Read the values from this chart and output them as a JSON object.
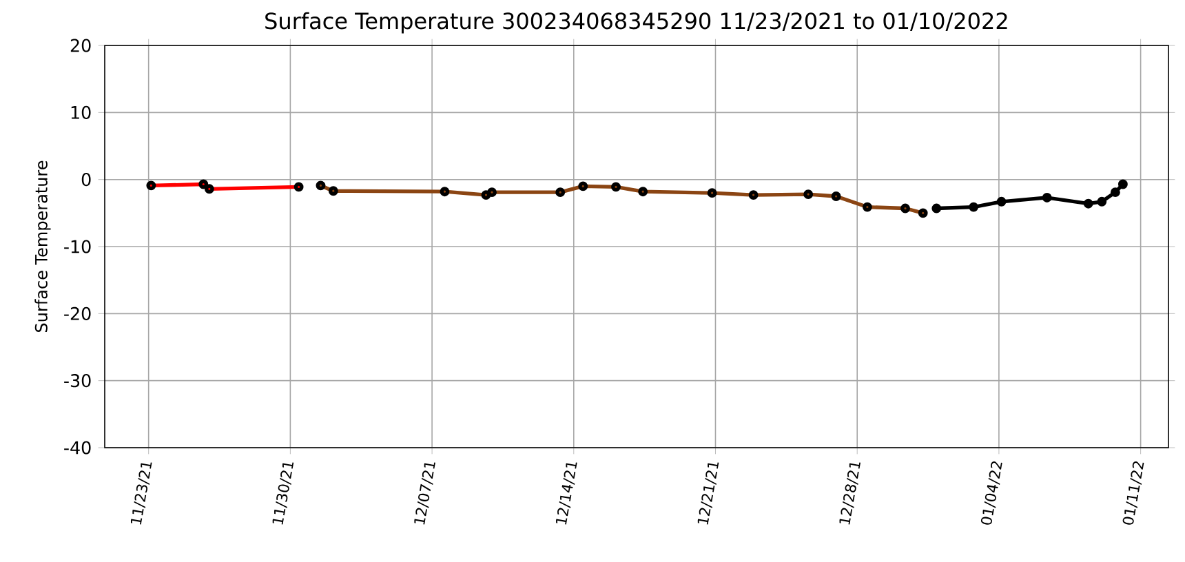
{
  "chart_data": {
    "type": "line",
    "title": "Surface Temperature 300234068345290  11/23/2021 to 01/10/2022",
    "ylabel": "Surface Temperature",
    "marker": "circle",
    "grid": true,
    "xlim": [
      "2021-11-20T20:00",
      "2022-01-12T09:00"
    ],
    "xticks": [
      {
        "value": "2021-11-23",
        "label": "11/23/21"
      },
      {
        "value": "2021-11-30",
        "label": "11/30/21"
      },
      {
        "value": "2021-12-07",
        "label": "12/07/21"
      },
      {
        "value": "2021-12-14",
        "label": "12/14/21"
      },
      {
        "value": "2021-12-21",
        "label": "12/21/21"
      },
      {
        "value": "2021-12-28",
        "label": "12/28/21"
      },
      {
        "value": "2022-01-04",
        "label": "01/04/22"
      },
      {
        "value": "2022-01-11",
        "label": "01/11/22"
      }
    ],
    "ylim": [
      -40,
      20
    ],
    "yticks": [
      -40,
      -30,
      -20,
      -10,
      0,
      10,
      20
    ],
    "series": [
      {
        "color": "#ff0000",
        "x": [
          "2021-11-23T03:00",
          "2021-11-25T17:00",
          "2021-11-26T00:00",
          "2021-11-30T10:00"
        ],
        "values": [
          -0.9,
          -0.7,
          -1.4,
          -1.1
        ]
      },
      {
        "color": "#8b4513",
        "x": [
          "2021-12-01T12:00",
          "2021-12-02T03:00",
          "2021-12-07T15:00",
          "2021-12-09T16:00",
          "2021-12-09T23:00",
          "2021-12-13T08:00",
          "2021-12-14T11:00",
          "2021-12-16T02:00",
          "2021-12-17T10:00",
          "2021-12-20T20:00",
          "2021-12-22T21:00",
          "2021-12-25T14:00",
          "2021-12-26T23:00",
          "2021-12-28T12:00",
          "2021-12-30T09:00",
          "2021-12-31T06:00"
        ],
        "values": [
          -0.9,
          -1.7,
          -1.8,
          -2.3,
          -1.9,
          -1.9,
          -1.0,
          -1.1,
          -1.8,
          -2.0,
          -2.3,
          -2.2,
          -2.5,
          -4.1,
          -4.3,
          -5.0
        ]
      },
      {
        "color": "#000000",
        "x": [
          "2021-12-31T22:00",
          "2022-01-02T18:00",
          "2022-01-04T03:00",
          "2022-01-06T09:00",
          "2022-01-08T10:00",
          "2022-01-09T02:00",
          "2022-01-09T18:00",
          "2022-01-10T03:00"
        ],
        "values": [
          -4.3,
          -4.1,
          -3.3,
          -2.7,
          -3.6,
          -3.3,
          -1.9,
          -0.7
        ]
      }
    ]
  }
}
